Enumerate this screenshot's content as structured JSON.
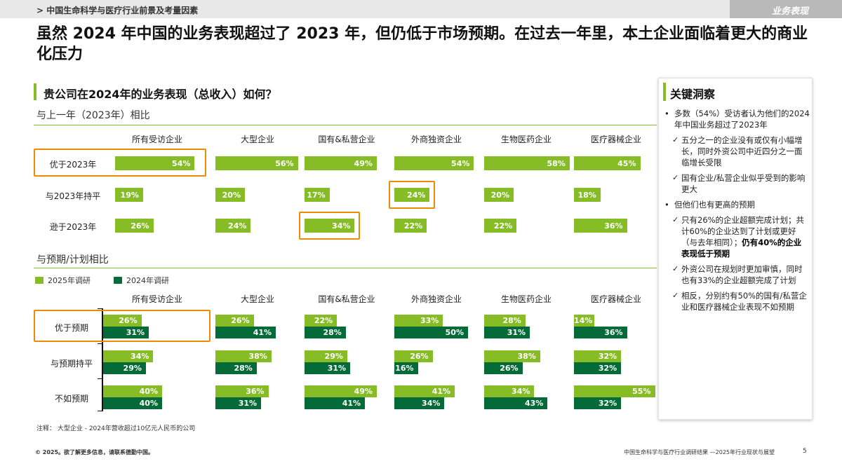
{
  "header": {
    "breadcrumb": "> 中国生命科学与医疗行业前景及考量因素",
    "section_tag": "业务表现",
    "headline": "虽然 2024 年中国的业务表现超过了 2023 年，但仍低于市场预期。在过去一年里，本土企业面临着更大的商业化压力"
  },
  "question": "贵公司在2024年的业务表现（总收入）如何？",
  "chart_data": [
    {
      "type": "bar",
      "subtitle": "与上一年（2023年）相比",
      "groups": [
        "所有受访企业",
        "大型企业",
        "国有&私营企业",
        "外商独资企业",
        "生物医药企业",
        "医疗器械企业"
      ],
      "categories": [
        "优于2023年",
        "与2023年持平",
        "逊于2023年"
      ],
      "series": [
        {
          "group": "所有受访企业",
          "values": [
            54,
            19,
            26
          ]
        },
        {
          "group": "大型企业",
          "values": [
            56,
            20,
            24
          ]
        },
        {
          "group": "国有&私营企业",
          "values": [
            49,
            17,
            34
          ]
        },
        {
          "group": "外商独资企业",
          "values": [
            54,
            24,
            22
          ]
        },
        {
          "group": "生物医药企业",
          "values": [
            58,
            20,
            22
          ]
        },
        {
          "group": "医疗器械企业",
          "values": [
            45,
            18,
            36
          ]
        }
      ],
      "unit": "%",
      "highlights": [
        {
          "group": 0,
          "category": 0
        },
        {
          "group": 2,
          "category": 2
        },
        {
          "group": 3,
          "category": 1
        }
      ],
      "highlight_color": "#ED8B00",
      "color": "#86BC25"
    },
    {
      "type": "bar",
      "subtitle": "与预期/计划相比",
      "legend": [
        "2025年调研",
        "2024年调研"
      ],
      "colors": [
        "#86BC25",
        "#046A38"
      ],
      "groups": [
        "所有受访企业",
        "大型企业",
        "国有&私营企业",
        "外商独资企业",
        "生物医药企业",
        "医疗器械企业"
      ],
      "categories": [
        "优于预期",
        "与预期持平",
        "不如预期"
      ],
      "series": [
        {
          "group": "所有受访企业",
          "y2025": [
            26,
            34,
            40
          ],
          "y2024": [
            31,
            29,
            40
          ]
        },
        {
          "group": "大型企业",
          "y2025": [
            26,
            38,
            36
          ],
          "y2024": [
            41,
            28,
            31
          ]
        },
        {
          "group": "国有&私营企业",
          "y2025": [
            22,
            29,
            49
          ],
          "y2024": [
            28,
            31,
            41
          ]
        },
        {
          "group": "外商独资企业",
          "y2025": [
            33,
            26,
            41
          ],
          "y2024": [
            50,
            16,
            34
          ]
        },
        {
          "group": "生物医药企业",
          "y2025": [
            28,
            38,
            34
          ],
          "y2024": [
            31,
            26,
            43
          ]
        },
        {
          "group": "医疗器械企业",
          "y2025": [
            14,
            32,
            55
          ],
          "y2024": [
            36,
            32,
            32
          ]
        }
      ],
      "unit": "%",
      "highlight_row": 0
    }
  ],
  "insights": {
    "title": "关键洞察",
    "items": [
      {
        "kind": "bullet",
        "text": "多数（54%）受访者认为他们的2024年中国业务超过了2023年"
      },
      {
        "kind": "check",
        "text": "五分之一的企业没有或仅有小幅增长，同时外资公司中近四分之一面临增长受限"
      },
      {
        "kind": "check",
        "text": "国有企业/私营企业似乎受到的影响更大"
      },
      {
        "kind": "bullet",
        "text": "但他们也有更高的预期"
      },
      {
        "kind": "check",
        "text": "只有26%的企业超额完成计划；共计60%的企业达到了计划或更好（与去年相同）；",
        "bold": "仍有40%的企业表现低于预期"
      },
      {
        "kind": "check",
        "text": "外资公司在规划时更加审慎，同时也有33%的企业超额完成了计划"
      },
      {
        "kind": "check",
        "text": "相反，分别约有50%的国有/私营企业和医疗器械企业表现不如预期"
      }
    ]
  },
  "footnote": "注释：  大型企业 - 2024年营收超过10亿元人民币的公司",
  "footer": {
    "copyright": "© 2025。欲了解更多信息，请联系德勤中国。",
    "report": "中国生命科学与医疗行业调研结果 —2025年行业现状与展望",
    "page": "5"
  }
}
